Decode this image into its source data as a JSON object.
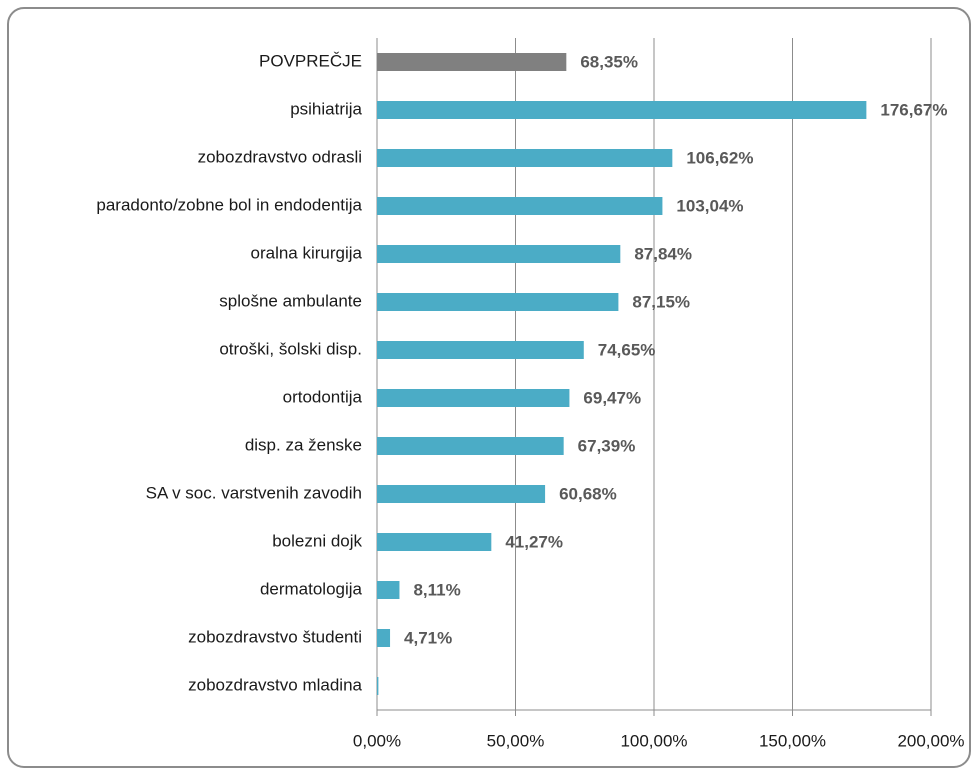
{
  "chart_data": {
    "type": "barh",
    "categories": [
      "POVPREČJE",
      "psihiatrija",
      "zobozdravstvo odrasli",
      "paradonto/zobne bol in endodentija",
      "oralna kirurgija",
      "splošne ambulante",
      "otroški, šolski disp.",
      "ortodontija",
      "disp. za ženske",
      "SA v soc. varstvenih zavodih",
      "bolezni dojk",
      "dermatologija",
      "zobozdravstvo študenti",
      "zobozdravstvo mladina"
    ],
    "values": [
      68.35,
      176.67,
      106.62,
      103.04,
      87.84,
      87.15,
      74.65,
      69.47,
      67.39,
      60.68,
      41.27,
      8.11,
      4.71,
      0.5
    ],
    "value_labels": [
      "68,35%",
      "176,67%",
      "106,62%",
      "103,04%",
      "87,84%",
      "87,15%",
      "74,65%",
      "69,47%",
      "67,39%",
      "60,68%",
      "41,27%",
      "8,11%",
      "4,71%",
      null
    ],
    "colors": [
      "#808080",
      "#4bacc6",
      "#4bacc6",
      "#4bacc6",
      "#4bacc6",
      "#4bacc6",
      "#4bacc6",
      "#4bacc6",
      "#4bacc6",
      "#4bacc6",
      "#4bacc6",
      "#4bacc6",
      "#4bacc6",
      "#4bacc6"
    ],
    "xlim": [
      0,
      200
    ],
    "xticks": [
      {
        "value": 0,
        "label": "0,00%"
      },
      {
        "value": 50,
        "label": "50,00%"
      },
      {
        "value": 100,
        "label": "100,00%"
      },
      {
        "value": 150,
        "label": "150,00%"
      },
      {
        "value": 200,
        "label": "200,00%"
      }
    ],
    "grid": true
  }
}
